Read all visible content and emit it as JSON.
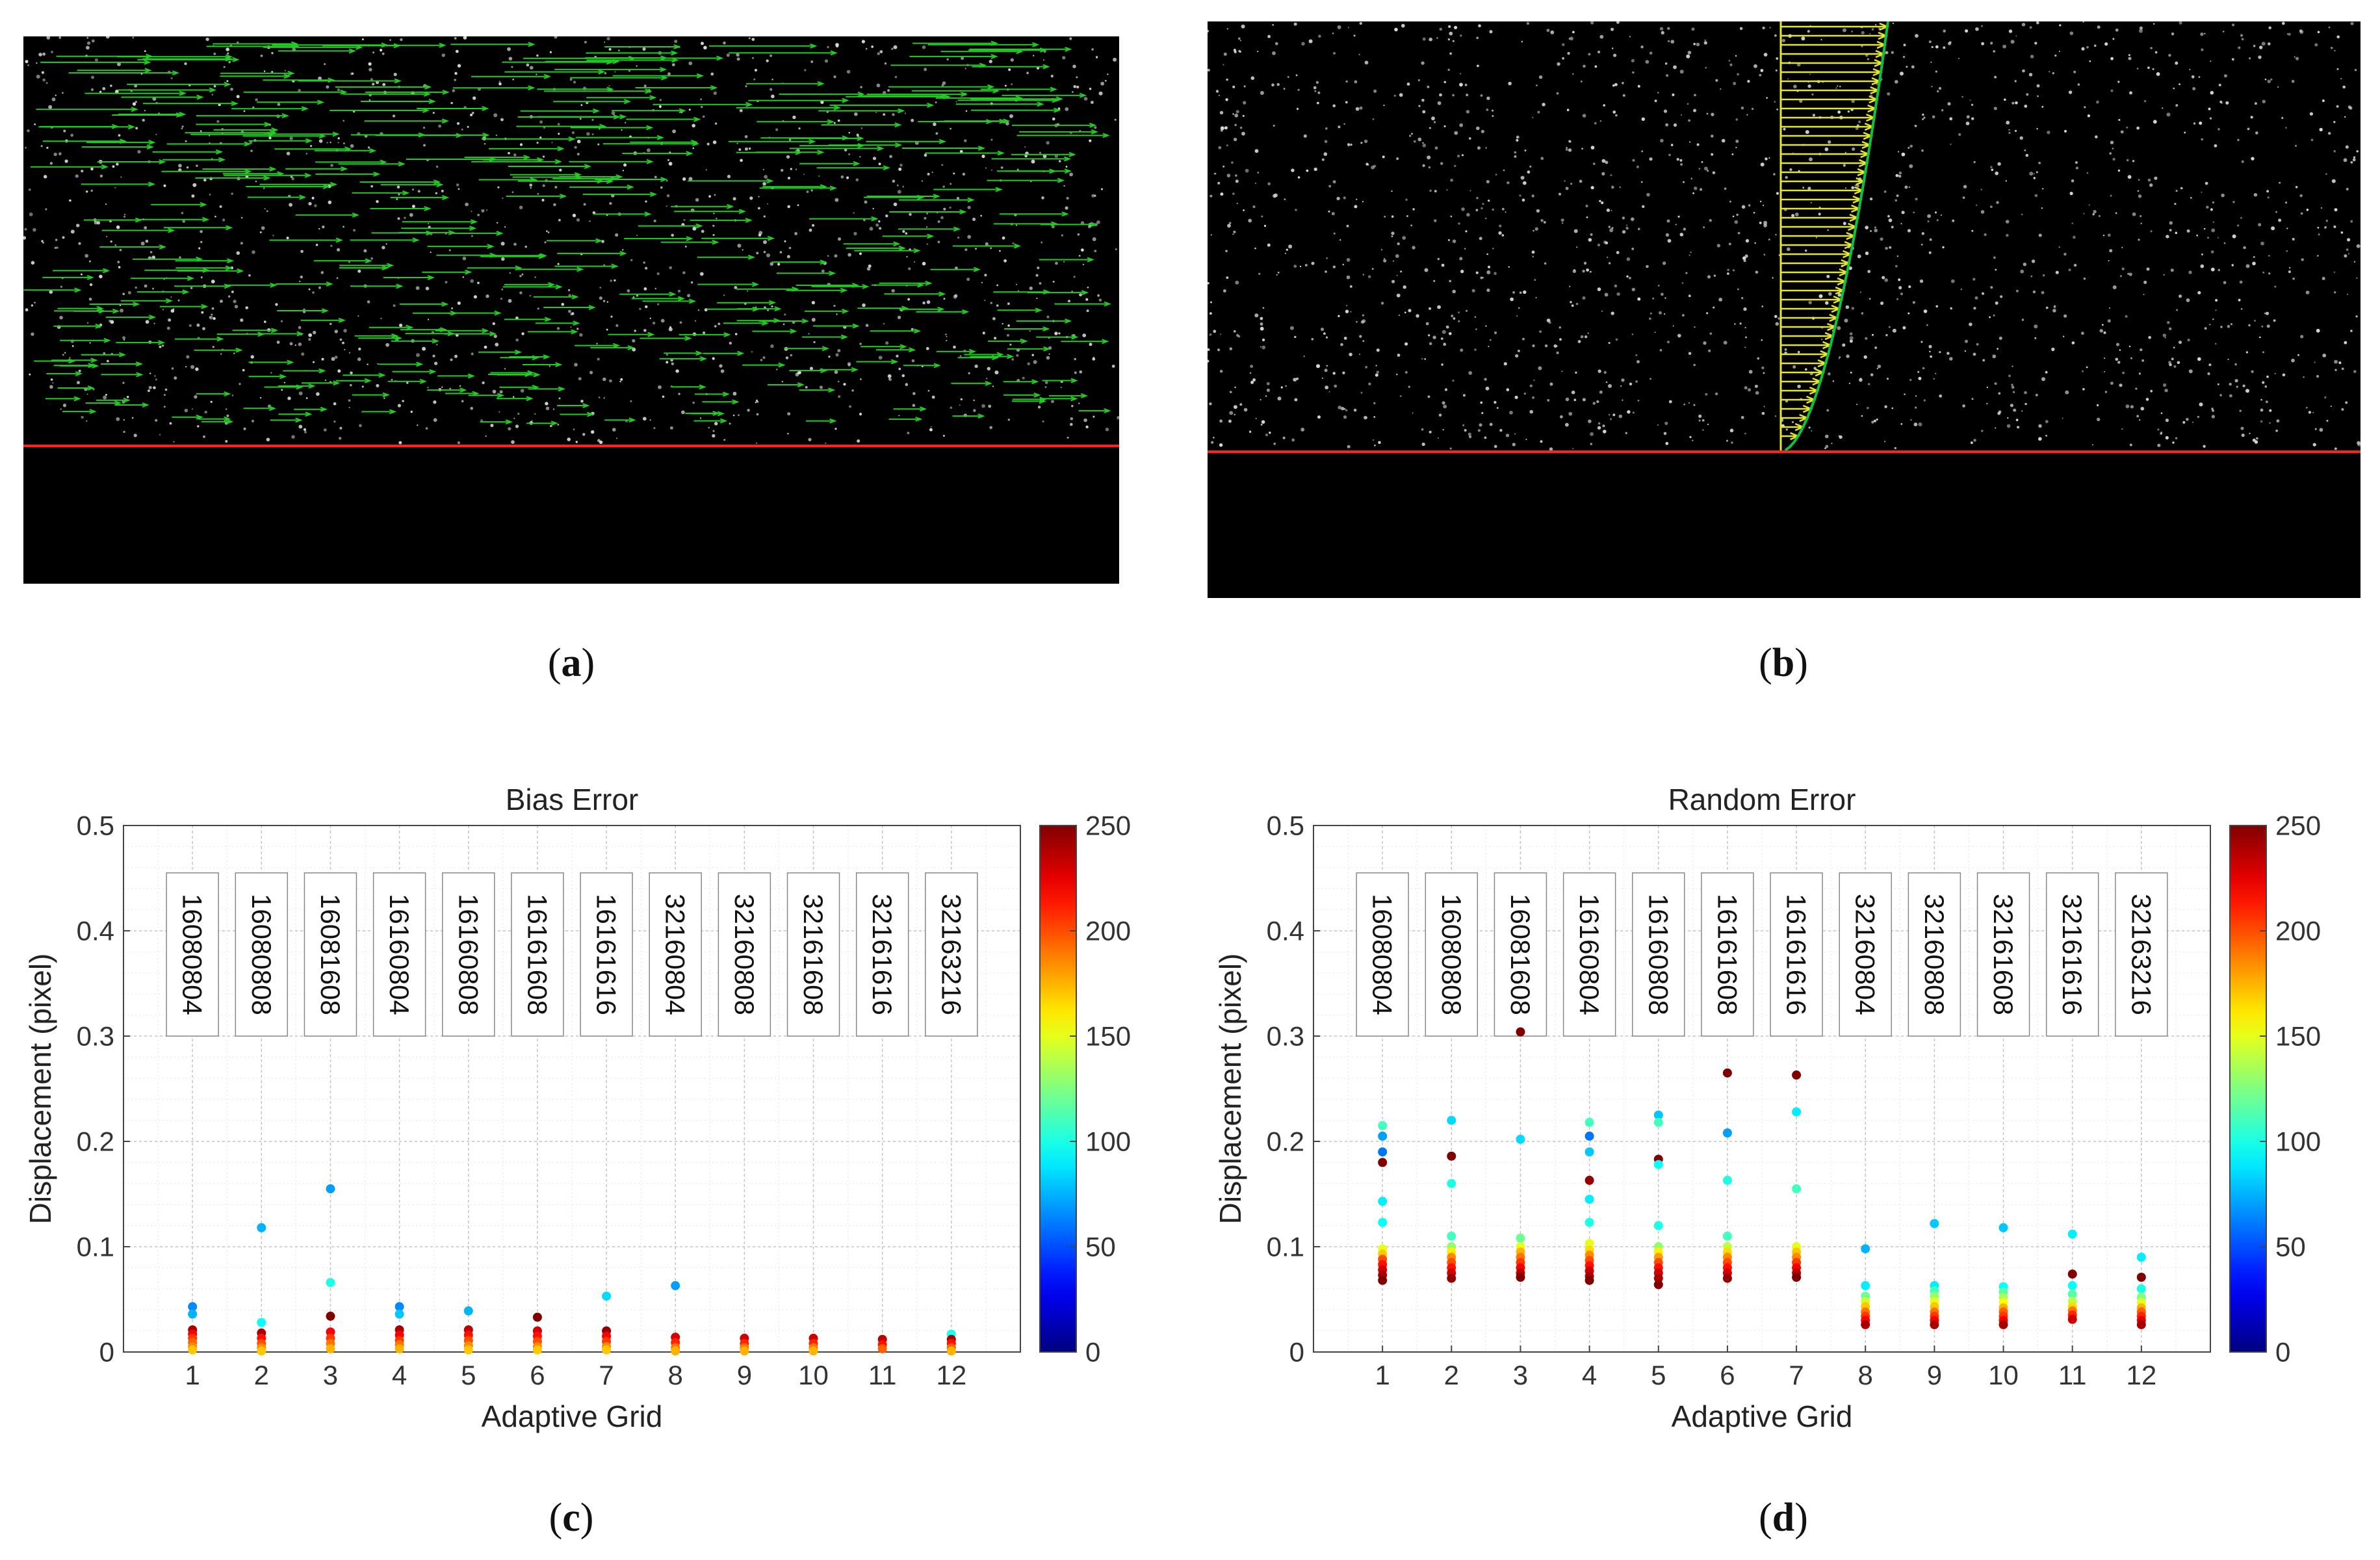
{
  "figure": {
    "label_a": "a",
    "label_b": "b",
    "label_c": "c",
    "label_d": "d",
    "paren_open": "(",
    "paren_close": ")"
  },
  "colors": {
    "arrow_green": "#22cc22",
    "line_red": "#ff2020",
    "profile_yellow": "#e6e632",
    "profile_edge": "#10c040"
  },
  "chart_data": [
    {
      "type": "scatter",
      "title": "Bias Error",
      "xlabel": "Adaptive Grid",
      "ylabel": "Displacement (pixel)",
      "xlim": [
        0,
        13
      ],
      "ylim": [
        0,
        0.5
      ],
      "yticks": [
        0,
        0.1,
        0.2,
        0.3,
        0.4,
        0.5
      ],
      "ytick_labels": [
        "0",
        "0.1",
        "0.2",
        "0.3",
        "0.4",
        "0.5"
      ],
      "xticks": [
        "1",
        "2",
        "3",
        "4",
        "5",
        "6",
        "7",
        "8",
        "9",
        "10",
        "11",
        "12"
      ],
      "grid": true,
      "colorbar": {
        "min": 0,
        "max": 250,
        "ticks": [
          "0",
          "50",
          "100",
          "150",
          "200",
          "250"
        ]
      },
      "annotations": [
        "16080804",
        "16080808",
        "16081608",
        "16160804",
        "16160808",
        "16161608",
        "16161616",
        "32160804",
        "32160808",
        "32161608",
        "32161616",
        "32163216"
      ],
      "points": [
        {
          "x": 1,
          "y": 0.043,
          "c": 65
        },
        {
          "x": 1,
          "y": 0.036,
          "c": 75
        },
        {
          "x": 1,
          "y": 0.021,
          "c": 240
        },
        {
          "x": 1,
          "y": 0.017,
          "c": 220
        },
        {
          "x": 1,
          "y": 0.013,
          "c": 205
        },
        {
          "x": 1,
          "y": 0.009,
          "c": 195
        },
        {
          "x": 1,
          "y": 0.005,
          "c": 185
        },
        {
          "x": 1,
          "y": 0.002,
          "c": 170
        },
        {
          "x": 2,
          "y": 0.118,
          "c": 75
        },
        {
          "x": 2,
          "y": 0.028,
          "c": 95
        },
        {
          "x": 2,
          "y": 0.018,
          "c": 240
        },
        {
          "x": 2,
          "y": 0.013,
          "c": 215
        },
        {
          "x": 2,
          "y": 0.008,
          "c": 200
        },
        {
          "x": 2,
          "y": 0.004,
          "c": 185
        },
        {
          "x": 2,
          "y": 0.001,
          "c": 170
        },
        {
          "x": 3,
          "y": 0.155,
          "c": 70
        },
        {
          "x": 3,
          "y": 0.066,
          "c": 100
        },
        {
          "x": 3,
          "y": 0.034,
          "c": 250
        },
        {
          "x": 3,
          "y": 0.019,
          "c": 220
        },
        {
          "x": 3,
          "y": 0.013,
          "c": 205
        },
        {
          "x": 3,
          "y": 0.008,
          "c": 190
        },
        {
          "x": 3,
          "y": 0.003,
          "c": 175
        },
        {
          "x": 4,
          "y": 0.043,
          "c": 65
        },
        {
          "x": 4,
          "y": 0.036,
          "c": 80
        },
        {
          "x": 4,
          "y": 0.021,
          "c": 240
        },
        {
          "x": 4,
          "y": 0.016,
          "c": 220
        },
        {
          "x": 4,
          "y": 0.011,
          "c": 205
        },
        {
          "x": 4,
          "y": 0.007,
          "c": 190
        },
        {
          "x": 4,
          "y": 0.003,
          "c": 175
        },
        {
          "x": 5,
          "y": 0.039,
          "c": 75
        },
        {
          "x": 5,
          "y": 0.021,
          "c": 235
        },
        {
          "x": 5,
          "y": 0.016,
          "c": 215
        },
        {
          "x": 5,
          "y": 0.011,
          "c": 200
        },
        {
          "x": 5,
          "y": 0.006,
          "c": 185
        },
        {
          "x": 5,
          "y": 0.002,
          "c": 170
        },
        {
          "x": 6,
          "y": 0.033,
          "c": 250
        },
        {
          "x": 6,
          "y": 0.02,
          "c": 230
        },
        {
          "x": 6,
          "y": 0.015,
          "c": 215
        },
        {
          "x": 6,
          "y": 0.01,
          "c": 200
        },
        {
          "x": 6,
          "y": 0.005,
          "c": 185
        },
        {
          "x": 6,
          "y": 0.002,
          "c": 170
        },
        {
          "x": 7,
          "y": 0.053,
          "c": 85
        },
        {
          "x": 7,
          "y": 0.02,
          "c": 245
        },
        {
          "x": 7,
          "y": 0.015,
          "c": 220
        },
        {
          "x": 7,
          "y": 0.01,
          "c": 205
        },
        {
          "x": 7,
          "y": 0.005,
          "c": 185
        },
        {
          "x": 7,
          "y": 0.002,
          "c": 170
        },
        {
          "x": 8,
          "y": 0.063,
          "c": 70
        },
        {
          "x": 8,
          "y": 0.014,
          "c": 230
        },
        {
          "x": 8,
          "y": 0.009,
          "c": 210
        },
        {
          "x": 8,
          "y": 0.004,
          "c": 190
        },
        {
          "x": 8,
          "y": 0.001,
          "c": 175
        },
        {
          "x": 9,
          "y": 0.013,
          "c": 230
        },
        {
          "x": 9,
          "y": 0.008,
          "c": 210
        },
        {
          "x": 9,
          "y": 0.004,
          "c": 190
        },
        {
          "x": 9,
          "y": 0.001,
          "c": 175
        },
        {
          "x": 10,
          "y": 0.013,
          "c": 230
        },
        {
          "x": 10,
          "y": 0.008,
          "c": 210
        },
        {
          "x": 10,
          "y": 0.004,
          "c": 190
        },
        {
          "x": 10,
          "y": 0.001,
          "c": 175
        },
        {
          "x": 11,
          "y": 0.012,
          "c": 235
        },
        {
          "x": 11,
          "y": 0.007,
          "c": 215
        },
        {
          "x": 11,
          "y": 0.003,
          "c": 195
        },
        {
          "x": 12,
          "y": 0.017,
          "c": 100
        },
        {
          "x": 12,
          "y": 0.012,
          "c": 240
        },
        {
          "x": 12,
          "y": 0.008,
          "c": 215
        },
        {
          "x": 12,
          "y": 0.004,
          "c": 195
        },
        {
          "x": 12,
          "y": 0.001,
          "c": 175
        }
      ]
    },
    {
      "type": "scatter",
      "title": "Random Error",
      "xlabel": "Adaptive Grid",
      "ylabel": "Displacement (pixel)",
      "xlim": [
        0,
        13
      ],
      "ylim": [
        0,
        0.5
      ],
      "yticks": [
        0,
        0.1,
        0.2,
        0.3,
        0.4,
        0.5
      ],
      "ytick_labels": [
        "0",
        "0.1",
        "0.2",
        "0.3",
        "0.4",
        "0.5"
      ],
      "xticks": [
        "1",
        "2",
        "3",
        "4",
        "5",
        "6",
        "7",
        "8",
        "9",
        "10",
        "11",
        "12"
      ],
      "grid": true,
      "colorbar": {
        "min": 0,
        "max": 250,
        "ticks": [
          "0",
          "50",
          "100",
          "150",
          "200",
          "250"
        ]
      },
      "annotations": [
        "16080804",
        "16080808",
        "16081608",
        "16160804",
        "16160808",
        "16161608",
        "16161616",
        "32160804",
        "32160808",
        "32161608",
        "32161616",
        "32163216"
      ],
      "points": [
        {
          "x": 1,
          "y": 0.215,
          "c": 110
        },
        {
          "x": 1,
          "y": 0.205,
          "c": 70
        },
        {
          "x": 1,
          "y": 0.19,
          "c": 60
        },
        {
          "x": 1,
          "y": 0.18,
          "c": 250
        },
        {
          "x": 1,
          "y": 0.143,
          "c": 90
        },
        {
          "x": 1,
          "y": 0.123,
          "c": 95
        },
        {
          "x": 1,
          "y": 0.098,
          "c": 150
        },
        {
          "x": 1,
          "y": 0.093,
          "c": 170
        },
        {
          "x": 1,
          "y": 0.088,
          "c": 200
        },
        {
          "x": 1,
          "y": 0.083,
          "c": 215
        },
        {
          "x": 1,
          "y": 0.078,
          "c": 230
        },
        {
          "x": 1,
          "y": 0.073,
          "c": 240
        },
        {
          "x": 1,
          "y": 0.068,
          "c": 250
        },
        {
          "x": 2,
          "y": 0.22,
          "c": 85
        },
        {
          "x": 2,
          "y": 0.186,
          "c": 250
        },
        {
          "x": 2,
          "y": 0.16,
          "c": 100
        },
        {
          "x": 2,
          "y": 0.11,
          "c": 110
        },
        {
          "x": 2,
          "y": 0.1,
          "c": 130
        },
        {
          "x": 2,
          "y": 0.095,
          "c": 160
        },
        {
          "x": 2,
          "y": 0.09,
          "c": 185
        },
        {
          "x": 2,
          "y": 0.085,
          "c": 200
        },
        {
          "x": 2,
          "y": 0.08,
          "c": 215
        },
        {
          "x": 2,
          "y": 0.075,
          "c": 230
        },
        {
          "x": 2,
          "y": 0.07,
          "c": 245
        },
        {
          "x": 3,
          "y": 0.304,
          "c": 250
        },
        {
          "x": 3,
          "y": 0.202,
          "c": 85
        },
        {
          "x": 3,
          "y": 0.108,
          "c": 120
        },
        {
          "x": 3,
          "y": 0.1,
          "c": 150
        },
        {
          "x": 3,
          "y": 0.095,
          "c": 175
        },
        {
          "x": 3,
          "y": 0.09,
          "c": 190
        },
        {
          "x": 3,
          "y": 0.085,
          "c": 205
        },
        {
          "x": 3,
          "y": 0.08,
          "c": 220
        },
        {
          "x": 3,
          "y": 0.075,
          "c": 235
        },
        {
          "x": 3,
          "y": 0.071,
          "c": 250
        },
        {
          "x": 4,
          "y": 0.218,
          "c": 110
        },
        {
          "x": 4,
          "y": 0.205,
          "c": 60
        },
        {
          "x": 4,
          "y": 0.19,
          "c": 80
        },
        {
          "x": 4,
          "y": 0.163,
          "c": 245
        },
        {
          "x": 4,
          "y": 0.145,
          "c": 90
        },
        {
          "x": 4,
          "y": 0.123,
          "c": 100
        },
        {
          "x": 4,
          "y": 0.103,
          "c": 150
        },
        {
          "x": 4,
          "y": 0.097,
          "c": 165
        },
        {
          "x": 4,
          "y": 0.092,
          "c": 185
        },
        {
          "x": 4,
          "y": 0.087,
          "c": 200
        },
        {
          "x": 4,
          "y": 0.082,
          "c": 215
        },
        {
          "x": 4,
          "y": 0.077,
          "c": 230
        },
        {
          "x": 4,
          "y": 0.072,
          "c": 240
        },
        {
          "x": 4,
          "y": 0.068,
          "c": 250
        },
        {
          "x": 5,
          "y": 0.225,
          "c": 80
        },
        {
          "x": 5,
          "y": 0.218,
          "c": 110
        },
        {
          "x": 5,
          "y": 0.183,
          "c": 250
        },
        {
          "x": 5,
          "y": 0.178,
          "c": 95
        },
        {
          "x": 5,
          "y": 0.12,
          "c": 100
        },
        {
          "x": 5,
          "y": 0.1,
          "c": 130
        },
        {
          "x": 5,
          "y": 0.095,
          "c": 160
        },
        {
          "x": 5,
          "y": 0.09,
          "c": 180
        },
        {
          "x": 5,
          "y": 0.085,
          "c": 200
        },
        {
          "x": 5,
          "y": 0.08,
          "c": 215
        },
        {
          "x": 5,
          "y": 0.075,
          "c": 230
        },
        {
          "x": 5,
          "y": 0.07,
          "c": 240
        },
        {
          "x": 5,
          "y": 0.064,
          "c": 250
        },
        {
          "x": 6,
          "y": 0.265,
          "c": 250
        },
        {
          "x": 6,
          "y": 0.208,
          "c": 70
        },
        {
          "x": 6,
          "y": 0.163,
          "c": 100
        },
        {
          "x": 6,
          "y": 0.11,
          "c": 110
        },
        {
          "x": 6,
          "y": 0.1,
          "c": 140
        },
        {
          "x": 6,
          "y": 0.095,
          "c": 165
        },
        {
          "x": 6,
          "y": 0.09,
          "c": 185
        },
        {
          "x": 6,
          "y": 0.085,
          "c": 200
        },
        {
          "x": 6,
          "y": 0.08,
          "c": 215
        },
        {
          "x": 6,
          "y": 0.075,
          "c": 230
        },
        {
          "x": 6,
          "y": 0.07,
          "c": 245
        },
        {
          "x": 7,
          "y": 0.263,
          "c": 250
        },
        {
          "x": 7,
          "y": 0.228,
          "c": 90
        },
        {
          "x": 7,
          "y": 0.155,
          "c": 110
        },
        {
          "x": 7,
          "y": 0.1,
          "c": 150
        },
        {
          "x": 7,
          "y": 0.095,
          "c": 170
        },
        {
          "x": 7,
          "y": 0.09,
          "c": 185
        },
        {
          "x": 7,
          "y": 0.085,
          "c": 205
        },
        {
          "x": 7,
          "y": 0.08,
          "c": 220
        },
        {
          "x": 7,
          "y": 0.075,
          "c": 235
        },
        {
          "x": 7,
          "y": 0.071,
          "c": 250
        },
        {
          "x": 8,
          "y": 0.098,
          "c": 75
        },
        {
          "x": 8,
          "y": 0.063,
          "c": 90
        },
        {
          "x": 8,
          "y": 0.053,
          "c": 120
        },
        {
          "x": 8,
          "y": 0.048,
          "c": 145
        },
        {
          "x": 8,
          "y": 0.043,
          "c": 170
        },
        {
          "x": 8,
          "y": 0.038,
          "c": 190
        },
        {
          "x": 8,
          "y": 0.034,
          "c": 205
        },
        {
          "x": 8,
          "y": 0.03,
          "c": 220
        },
        {
          "x": 8,
          "y": 0.026,
          "c": 240
        },
        {
          "x": 9,
          "y": 0.122,
          "c": 80
        },
        {
          "x": 9,
          "y": 0.063,
          "c": 90
        },
        {
          "x": 9,
          "y": 0.058,
          "c": 110
        },
        {
          "x": 9,
          "y": 0.053,
          "c": 130
        },
        {
          "x": 9,
          "y": 0.048,
          "c": 150
        },
        {
          "x": 9,
          "y": 0.043,
          "c": 170
        },
        {
          "x": 9,
          "y": 0.038,
          "c": 190
        },
        {
          "x": 9,
          "y": 0.034,
          "c": 205
        },
        {
          "x": 9,
          "y": 0.03,
          "c": 220
        },
        {
          "x": 9,
          "y": 0.026,
          "c": 240
        },
        {
          "x": 10,
          "y": 0.118,
          "c": 80
        },
        {
          "x": 10,
          "y": 0.062,
          "c": 95
        },
        {
          "x": 10,
          "y": 0.057,
          "c": 115
        },
        {
          "x": 10,
          "y": 0.052,
          "c": 135
        },
        {
          "x": 10,
          "y": 0.047,
          "c": 155
        },
        {
          "x": 10,
          "y": 0.042,
          "c": 175
        },
        {
          "x": 10,
          "y": 0.038,
          "c": 195
        },
        {
          "x": 10,
          "y": 0.034,
          "c": 205
        },
        {
          "x": 10,
          "y": 0.03,
          "c": 220
        },
        {
          "x": 10,
          "y": 0.026,
          "c": 240
        },
        {
          "x": 11,
          "y": 0.112,
          "c": 90
        },
        {
          "x": 11,
          "y": 0.074,
          "c": 250
        },
        {
          "x": 11,
          "y": 0.063,
          "c": 95
        },
        {
          "x": 11,
          "y": 0.055,
          "c": 115
        },
        {
          "x": 11,
          "y": 0.048,
          "c": 140
        },
        {
          "x": 11,
          "y": 0.043,
          "c": 165
        },
        {
          "x": 11,
          "y": 0.039,
          "c": 190
        },
        {
          "x": 11,
          "y": 0.035,
          "c": 210
        },
        {
          "x": 11,
          "y": 0.031,
          "c": 230
        },
        {
          "x": 12,
          "y": 0.09,
          "c": 90
        },
        {
          "x": 12,
          "y": 0.071,
          "c": 250
        },
        {
          "x": 12,
          "y": 0.06,
          "c": 100
        },
        {
          "x": 12,
          "y": 0.052,
          "c": 125
        },
        {
          "x": 12,
          "y": 0.047,
          "c": 150
        },
        {
          "x": 12,
          "y": 0.042,
          "c": 175
        },
        {
          "x": 12,
          "y": 0.038,
          "c": 195
        },
        {
          "x": 12,
          "y": 0.034,
          "c": 210
        },
        {
          "x": 12,
          "y": 0.03,
          "c": 225
        },
        {
          "x": 12,
          "y": 0.026,
          "c": 240
        }
      ]
    }
  ]
}
